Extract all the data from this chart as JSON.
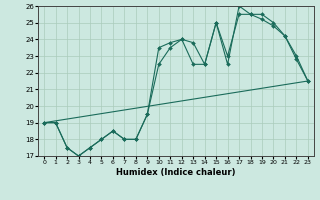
{
  "xlabel": "Humidex (Indice chaleur)",
  "xlim": [
    -0.5,
    23.5
  ],
  "ylim": [
    17,
    26
  ],
  "xticks": [
    0,
    1,
    2,
    3,
    4,
    5,
    6,
    7,
    8,
    9,
    10,
    11,
    12,
    13,
    14,
    15,
    16,
    17,
    18,
    19,
    20,
    21,
    22,
    23
  ],
  "yticks": [
    17,
    18,
    19,
    20,
    21,
    22,
    23,
    24,
    25,
    26
  ],
  "background_color": "#cce8e0",
  "grid_color": "#aaccbb",
  "line_color": "#1a6b5a",
  "line1_x": [
    0,
    1,
    2,
    3,
    4,
    5,
    6,
    7,
    8,
    9,
    10,
    11,
    12,
    13,
    14,
    15,
    16,
    17,
    18,
    19,
    20,
    21,
    22,
    23
  ],
  "line1_y": [
    19,
    19,
    17.5,
    17,
    17.5,
    18,
    18.5,
    18,
    18,
    19.5,
    23.5,
    23.8,
    24.0,
    23.8,
    22.5,
    25.0,
    22.5,
    26.0,
    25.5,
    25.5,
    25.0,
    24.2,
    23.0,
    21.5
  ],
  "line2_x": [
    0,
    1,
    2,
    3,
    4,
    5,
    6,
    7,
    8,
    9,
    10,
    11,
    12,
    13,
    14,
    15,
    16,
    17,
    18,
    19,
    20,
    21,
    22,
    23
  ],
  "line2_y": [
    19,
    19,
    17.5,
    17,
    17.5,
    18,
    18.5,
    18,
    18,
    19.5,
    22.5,
    23.5,
    24.0,
    22.5,
    22.5,
    25.0,
    23.0,
    25.5,
    25.5,
    25.2,
    24.8,
    24.2,
    22.8,
    21.5
  ],
  "line3_x": [
    0,
    23
  ],
  "line3_y": [
    19,
    21.5
  ]
}
